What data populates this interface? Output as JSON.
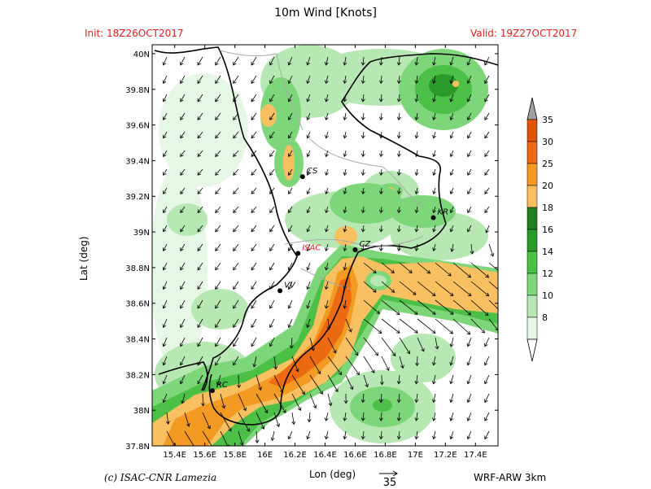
{
  "header": {
    "title": "10m Wind [Knots]",
    "init": "Init: 18Z26OCT2017",
    "valid": "Valid: 19Z27OCT2017"
  },
  "footer": {
    "copyright": "(c) ISAC-CNR Lamezia",
    "model": "WRF-ARW 3km",
    "x_axis_label": "Lon (deg)",
    "y_axis_label": "Lat (deg)",
    "reference_vector_value": "35"
  },
  "map": {
    "lon_range": [
      15.25,
      17.55
    ],
    "lat_range": [
      37.8,
      40.05
    ],
    "lon_ticks": [
      "15.4E",
      "15.6E",
      "15.8E",
      "16E",
      "16.2E",
      "16.4E",
      "16.6E",
      "16.8E",
      "17E",
      "17.2E",
      "17.4E"
    ],
    "lat_ticks": [
      "37.8N",
      "38N",
      "38.2N",
      "38.4N",
      "38.6N",
      "38.8N",
      "39N",
      "39.2N",
      "39.4N",
      "39.6N",
      "39.8N",
      "40N"
    ],
    "cities": [
      {
        "label": "CS",
        "lon": 16.25,
        "lat": 39.31,
        "color": "#000000"
      },
      {
        "label": "KR",
        "lon": 17.12,
        "lat": 39.08,
        "color": "#000000"
      },
      {
        "label": "ISAC",
        "lon": 16.22,
        "lat": 38.88,
        "color": "#e02020"
      },
      {
        "label": "CZ",
        "lon": 16.6,
        "lat": 38.9,
        "color": "#000000"
      },
      {
        "label": "VV",
        "lon": 16.1,
        "lat": 38.67,
        "color": "#000000"
      },
      {
        "label": "RC",
        "lon": 15.65,
        "lat": 38.11,
        "color": "#000000"
      }
    ]
  },
  "colorbar": {
    "levels": [
      "8",
      "10",
      "12",
      "14",
      "16",
      "18",
      "20",
      "25",
      "30",
      "35"
    ],
    "colors": [
      "#ffffff",
      "#e6f7e6",
      "#b7e8b4",
      "#7ed67a",
      "#4cbf47",
      "#2a9a28",
      "#1f7e1f",
      "#f8c060",
      "#f39a23",
      "#ec6b12",
      "#e2540a"
    ],
    "arrow_colors": [
      "#ffffff",
      "#a0a0a0"
    ]
  },
  "wind_field": {
    "units": "knots",
    "reference_speed": 35
  }
}
